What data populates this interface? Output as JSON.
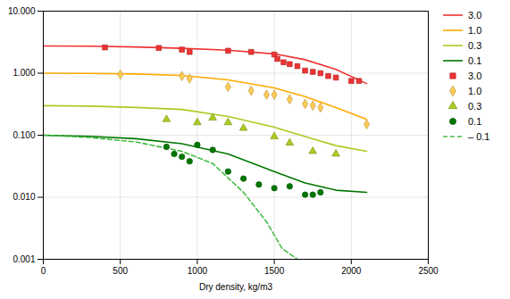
{
  "chart_data": {
    "type": "line",
    "xlabel": "Dry density, kg/m3",
    "log": "y",
    "grid": true,
    "legend": "right",
    "xlim": [
      0,
      2500
    ],
    "xticks": [
      0,
      500,
      1000,
      1500,
      2000,
      2500
    ],
    "ylim": [
      0.001,
      10.0
    ],
    "yticks": [
      0.001,
      {
        "value": 0.01,
        "label": "0.010"
      },
      {
        "value": 0.1,
        "label": "0.100"
      },
      {
        "value": 1.0,
        "label": "1.000"
      },
      {
        "value": 10.0,
        "label": "10.000"
      }
    ],
    "series": [
      {
        "name": "3.0",
        "type": "line",
        "line_style": "solid",
        "color": "#ee3333",
        "x": [
          0,
          300,
          600,
          900,
          1200,
          1500,
          1700,
          1900,
          2100
        ],
        "values": [
          2.75,
          2.72,
          2.65,
          2.52,
          2.35,
          2.05,
          1.65,
          1.15,
          0.68
        ]
      },
      {
        "name": "1.0",
        "type": "line",
        "line_style": "solid",
        "color": "#ffaa00",
        "x": [
          0,
          300,
          600,
          900,
          1200,
          1500,
          1700,
          1900,
          2100
        ],
        "values": [
          1.0,
          0.99,
          0.97,
          0.92,
          0.78,
          0.58,
          0.42,
          0.28,
          0.18
        ]
      },
      {
        "name": "0.3",
        "type": "line",
        "line_style": "solid",
        "color": "#aacc22",
        "x": [
          0,
          300,
          600,
          900,
          1200,
          1500,
          1700,
          1900,
          2100
        ],
        "values": [
          0.3,
          0.295,
          0.28,
          0.26,
          0.2,
          0.135,
          0.095,
          0.068,
          0.055
        ]
      },
      {
        "name": "0.1",
        "type": "line",
        "line_style": "solid",
        "color": "#007700",
        "x": [
          0,
          300,
          600,
          900,
          1200,
          1500,
          1700,
          1900,
          2100
        ],
        "values": [
          0.1,
          0.096,
          0.088,
          0.073,
          0.05,
          0.026,
          0.017,
          0.013,
          0.012
        ]
      },
      {
        "name": "‒ 0.1",
        "type": "line",
        "line_style": "dashed",
        "color": "#44bb44",
        "x": [
          0,
          300,
          600,
          900,
          1100,
          1300,
          1450,
          1550,
          1650
        ],
        "values": [
          0.1,
          0.092,
          0.078,
          0.055,
          0.035,
          0.012,
          0.004,
          0.0015,
          0.001
        ]
      },
      {
        "name": "3.0",
        "type": "scatter",
        "marker": "square",
        "color": "#ee3333",
        "x": [
          400,
          750,
          900,
          950,
          1200,
          1350,
          1500,
          1520,
          1560,
          1600,
          1650,
          1700,
          1750,
          1800,
          1850,
          1900,
          2000,
          2050
        ],
        "values": [
          2.6,
          2.55,
          2.4,
          2.2,
          2.3,
          2.2,
          2.0,
          1.7,
          1.5,
          1.4,
          1.3,
          1.1,
          1.05,
          1.0,
          0.9,
          0.85,
          0.75,
          0.75
        ]
      },
      {
        "name": "1.0",
        "type": "scatter",
        "marker": "diamond",
        "color": "#ffcc55",
        "x": [
          500,
          900,
          950,
          1200,
          1350,
          1450,
          1500,
          1600,
          1700,
          1750,
          1800,
          2100
        ],
        "values": [
          0.95,
          0.9,
          0.82,
          0.6,
          0.52,
          0.45,
          0.45,
          0.38,
          0.32,
          0.3,
          0.28,
          0.15
        ]
      },
      {
        "name": "0.3",
        "type": "scatter",
        "marker": "triangle",
        "color": "#aacc22",
        "x": [
          800,
          1000,
          1100,
          1200,
          1300,
          1500,
          1600,
          1750,
          1900
        ],
        "values": [
          0.18,
          0.16,
          0.19,
          0.16,
          0.13,
          0.095,
          0.075,
          0.055,
          0.05
        ]
      },
      {
        "name": "0.1",
        "type": "scatter",
        "marker": "circle",
        "color": "#007700",
        "x": [
          800,
          850,
          900,
          950,
          1000,
          1100,
          1200,
          1300,
          1400,
          1500,
          1600,
          1700,
          1750,
          1800
        ],
        "values": [
          0.065,
          0.05,
          0.045,
          0.038,
          0.07,
          0.058,
          0.026,
          0.02,
          0.016,
          0.014,
          0.015,
          0.011,
          0.011,
          0.012
        ]
      }
    ]
  }
}
